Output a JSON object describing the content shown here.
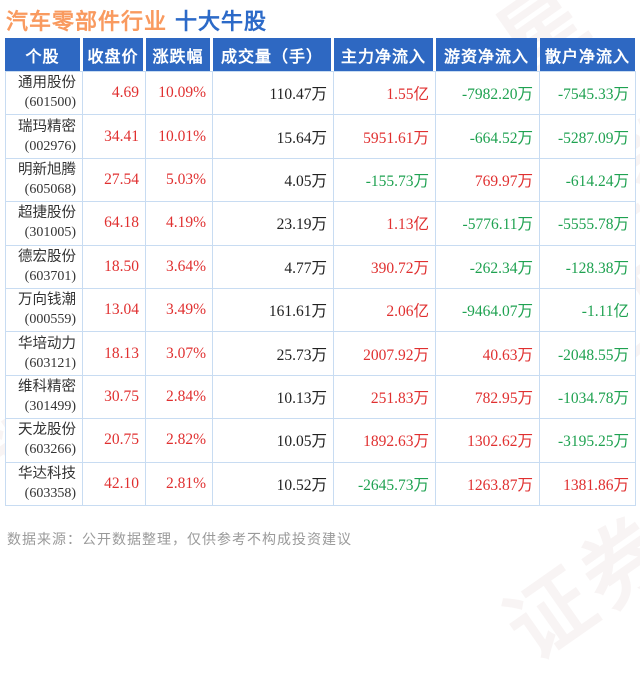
{
  "page": {
    "title_industry": "汽车零部件行业",
    "title_suffix": "十大牛股",
    "footer": "数据来源：公开数据整理，仅供参考不构成投资建议",
    "watermark_text": "证券之星"
  },
  "colors": {
    "header_bg": "#2E68C2",
    "title_orange": "#F99A5F",
    "title_blue": "#2C6AC8",
    "up_red": "#E03030",
    "down_green": "#1FA251",
    "border_blue": "#C8DCF2",
    "footer_gray": "#9A9A9A"
  },
  "chart_data": {
    "type": "table",
    "title": "汽车零部件行业 十大牛股",
    "columns": [
      "个股",
      "收盘价",
      "涨跌幅",
      "成交量（手）",
      "主力净流入",
      "游资净流入",
      "散户净流入"
    ],
    "rows": [
      {
        "name": "通用股份",
        "code": "(601500)",
        "close": "4.69",
        "change": "10.09%",
        "volume": "110.47万",
        "main_inflow": "1.55亿",
        "hot_money_inflow": "-7982.20万",
        "retail_inflow": "-7545.33万"
      },
      {
        "name": "瑞玛精密",
        "code": "(002976)",
        "close": "34.41",
        "change": "10.01%",
        "volume": "15.64万",
        "main_inflow": "5951.61万",
        "hot_money_inflow": "-664.52万",
        "retail_inflow": "-5287.09万"
      },
      {
        "name": "明新旭腾",
        "code": "(605068)",
        "close": "27.54",
        "change": "5.03%",
        "volume": "4.05万",
        "main_inflow": "-155.73万",
        "hot_money_inflow": "769.97万",
        "retail_inflow": "-614.24万"
      },
      {
        "name": "超捷股份",
        "code": "(301005)",
        "close": "64.18",
        "change": "4.19%",
        "volume": "23.19万",
        "main_inflow": "1.13亿",
        "hot_money_inflow": "-5776.11万",
        "retail_inflow": "-5555.78万"
      },
      {
        "name": "德宏股份",
        "code": "(603701)",
        "close": "18.50",
        "change": "3.64%",
        "volume": "4.77万",
        "main_inflow": "390.72万",
        "hot_money_inflow": "-262.34万",
        "retail_inflow": "-128.38万"
      },
      {
        "name": "万向钱潮",
        "code": "(000559)",
        "close": "13.04",
        "change": "3.49%",
        "volume": "161.61万",
        "main_inflow": "2.06亿",
        "hot_money_inflow": "-9464.07万",
        "retail_inflow": "-1.11亿"
      },
      {
        "name": "华培动力",
        "code": "(603121)",
        "close": "18.13",
        "change": "3.07%",
        "volume": "25.73万",
        "main_inflow": "2007.92万",
        "hot_money_inflow": "40.63万",
        "retail_inflow": "-2048.55万"
      },
      {
        "name": "维科精密",
        "code": "(301499)",
        "close": "30.75",
        "change": "2.84%",
        "volume": "10.13万",
        "main_inflow": "251.83万",
        "hot_money_inflow": "782.95万",
        "retail_inflow": "-1034.78万"
      },
      {
        "name": "天龙股份",
        "code": "(603266)",
        "close": "20.75",
        "change": "2.82%",
        "volume": "10.05万",
        "main_inflow": "1892.63万",
        "hot_money_inflow": "1302.62万",
        "retail_inflow": "-3195.25万"
      },
      {
        "name": "华达科技",
        "code": "(603358)",
        "close": "42.10",
        "change": "2.81%",
        "volume": "10.52万",
        "main_inflow": "-2645.73万",
        "hot_money_inflow": "1263.87万",
        "retail_inflow": "1381.86万"
      }
    ]
  }
}
